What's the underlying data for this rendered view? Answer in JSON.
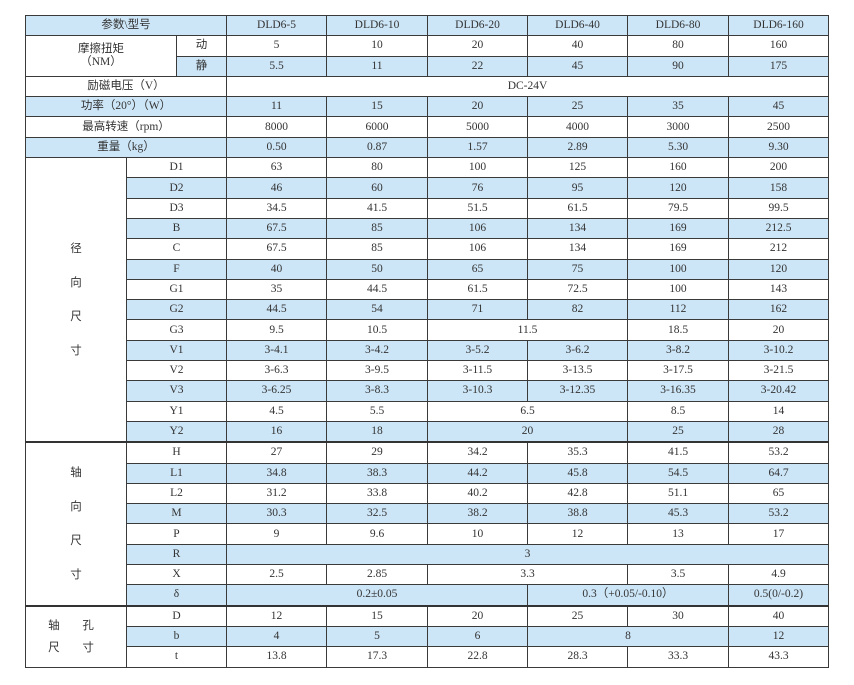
{
  "header": {
    "param_label": "参数\\型号",
    "models": [
      "DLD6-5",
      "DLD6-10",
      "DLD6-20",
      "DLD6-40",
      "DLD6-80",
      "DLD6-160"
    ]
  },
  "friction": {
    "label": "摩擦扭矩\n（NM）",
    "rows": [
      {
        "sub": "动",
        "values": [
          {
            "v": "5"
          },
          {
            "v": "10"
          },
          {
            "v": "20"
          },
          {
            "v": "40"
          },
          {
            "v": "80"
          },
          {
            "v": "160"
          }
        ]
      },
      {
        "sub": "静",
        "values": [
          {
            "v": "5.5"
          },
          {
            "v": "11"
          },
          {
            "v": "22"
          },
          {
            "v": "45"
          },
          {
            "v": "90"
          },
          {
            "v": "175"
          }
        ]
      }
    ]
  },
  "simple_rows": [
    {
      "label": "励磁电压（V）",
      "values": [
        {
          "v": "DC-24V",
          "span": 6
        }
      ]
    },
    {
      "label": "功率（20°）（W）",
      "values": [
        {
          "v": "11"
        },
        {
          "v": "15"
        },
        {
          "v": "20"
        },
        {
          "v": "25"
        },
        {
          "v": "35"
        },
        {
          "v": "45"
        }
      ]
    },
    {
      "label": "最高转速（rpm）",
      "values": [
        {
          "v": "8000"
        },
        {
          "v": "6000"
        },
        {
          "v": "5000"
        },
        {
          "v": "4000"
        },
        {
          "v": "3000"
        },
        {
          "v": "2500"
        }
      ]
    },
    {
      "label": "重量（kg）",
      "values": [
        {
          "v": "0.50"
        },
        {
          "v": "0.87"
        },
        {
          "v": "1.57"
        },
        {
          "v": "2.89"
        },
        {
          "v": "5.30"
        },
        {
          "v": "9.30"
        }
      ]
    }
  ],
  "groups": [
    {
      "label": "径\n向\n尺\n寸",
      "rows": [
        {
          "label": "D1",
          "values": [
            {
              "v": "63"
            },
            {
              "v": "80"
            },
            {
              "v": "100"
            },
            {
              "v": "125"
            },
            {
              "v": "160"
            },
            {
              "v": "200"
            }
          ]
        },
        {
          "label": "D2",
          "values": [
            {
              "v": "46"
            },
            {
              "v": "60"
            },
            {
              "v": "76"
            },
            {
              "v": "95"
            },
            {
              "v": "120"
            },
            {
              "v": "158"
            }
          ]
        },
        {
          "label": "D3",
          "values": [
            {
              "v": "34.5"
            },
            {
              "v": "41.5"
            },
            {
              "v": "51.5"
            },
            {
              "v": "61.5"
            },
            {
              "v": "79.5"
            },
            {
              "v": "99.5"
            }
          ]
        },
        {
          "label": "B",
          "values": [
            {
              "v": "67.5"
            },
            {
              "v": "85"
            },
            {
              "v": "106"
            },
            {
              "v": "134"
            },
            {
              "v": "169"
            },
            {
              "v": "212.5"
            }
          ]
        },
        {
          "label": "C",
          "values": [
            {
              "v": "67.5"
            },
            {
              "v": "85"
            },
            {
              "v": "106"
            },
            {
              "v": "134"
            },
            {
              "v": "169"
            },
            {
              "v": "212"
            }
          ]
        },
        {
          "label": "F",
          "values": [
            {
              "v": "40"
            },
            {
              "v": "50"
            },
            {
              "v": "65"
            },
            {
              "v": "75"
            },
            {
              "v": "100"
            },
            {
              "v": "120"
            }
          ]
        },
        {
          "label": "G1",
          "values": [
            {
              "v": "35"
            },
            {
              "v": "44.5"
            },
            {
              "v": "61.5"
            },
            {
              "v": "72.5"
            },
            {
              "v": "100"
            },
            {
              "v": "143"
            }
          ]
        },
        {
          "label": "G2",
          "values": [
            {
              "v": "44.5"
            },
            {
              "v": "54"
            },
            {
              "v": "71"
            },
            {
              "v": "82"
            },
            {
              "v": "112"
            },
            {
              "v": "162"
            }
          ]
        },
        {
          "label": "G3",
          "values": [
            {
              "v": "9.5"
            },
            {
              "v": "10.5"
            },
            {
              "v": "11.5",
              "span": 2
            },
            {
              "v": "18.5"
            },
            {
              "v": "20"
            }
          ]
        },
        {
          "label": "V1",
          "values": [
            {
              "v": "3-4.1"
            },
            {
              "v": "3-4.2"
            },
            {
              "v": "3-5.2"
            },
            {
              "v": "3-6.2"
            },
            {
              "v": "3-8.2"
            },
            {
              "v": "3-10.2"
            }
          ]
        },
        {
          "label": "V2",
          "values": [
            {
              "v": "3-6.3"
            },
            {
              "v": "3-9.5"
            },
            {
              "v": "3-11.5"
            },
            {
              "v": "3-13.5"
            },
            {
              "v": "3-17.5"
            },
            {
              "v": "3-21.5"
            }
          ]
        },
        {
          "label": "V3",
          "values": [
            {
              "v": "3-6.25"
            },
            {
              "v": "3-8.3"
            },
            {
              "v": "3-10.3"
            },
            {
              "v": "3-12.35"
            },
            {
              "v": "3-16.35"
            },
            {
              "v": "3-20.42"
            }
          ]
        },
        {
          "label": "Y1",
          "values": [
            {
              "v": "4.5"
            },
            {
              "v": "5.5"
            },
            {
              "v": "6.5",
              "span": 2
            },
            {
              "v": "8.5"
            },
            {
              "v": "14"
            }
          ]
        },
        {
          "label": "Y2",
          "values": [
            {
              "v": "16"
            },
            {
              "v": "18"
            },
            {
              "v": "20",
              "span": 2
            },
            {
              "v": "25"
            },
            {
              "v": "28"
            }
          ]
        }
      ]
    },
    {
      "label": "轴\n向\n尺\n寸",
      "rows": [
        {
          "label": "H",
          "values": [
            {
              "v": "27"
            },
            {
              "v": "29"
            },
            {
              "v": "34.2"
            },
            {
              "v": "35.3"
            },
            {
              "v": "41.5"
            },
            {
              "v": "53.2"
            }
          ]
        },
        {
          "label": "L1",
          "values": [
            {
              "v": "34.8"
            },
            {
              "v": "38.3"
            },
            {
              "v": "44.2"
            },
            {
              "v": "45.8"
            },
            {
              "v": "54.5"
            },
            {
              "v": "64.7"
            }
          ]
        },
        {
          "label": "L2",
          "values": [
            {
              "v": "31.2"
            },
            {
              "v": "33.8"
            },
            {
              "v": "40.2"
            },
            {
              "v": "42.8"
            },
            {
              "v": "51.1"
            },
            {
              "v": "65"
            }
          ]
        },
        {
          "label": "M",
          "values": [
            {
              "v": "30.3"
            },
            {
              "v": "32.5"
            },
            {
              "v": "38.2"
            },
            {
              "v": "38.8"
            },
            {
              "v": "45.3"
            },
            {
              "v": "53.2"
            }
          ]
        },
        {
          "label": "P",
          "values": [
            {
              "v": "9"
            },
            {
              "v": "9.6"
            },
            {
              "v": "10"
            },
            {
              "v": "12"
            },
            {
              "v": "13"
            },
            {
              "v": "17"
            }
          ]
        },
        {
          "label": "R",
          "values": [
            {
              "v": "3",
              "span": 6
            }
          ]
        },
        {
          "label": "X",
          "values": [
            {
              "v": "2.5"
            },
            {
              "v": "2.85"
            },
            {
              "v": "3.3",
              "span": 2
            },
            {
              "v": "3.5"
            },
            {
              "v": "4.9"
            }
          ]
        },
        {
          "label": "δ",
          "values": [
            {
              "v": "0.2±0.05",
              "span": 3
            },
            {
              "v": "0.3（+0.05/-0.10）",
              "span": 2
            },
            {
              "v": "0.5(0/-0.2)"
            }
          ]
        }
      ]
    },
    {
      "label": "轴 孔\n尺 寸",
      "rows": [
        {
          "label": "D",
          "values": [
            {
              "v": "12"
            },
            {
              "v": "15"
            },
            {
              "v": "20"
            },
            {
              "v": "25"
            },
            {
              "v": "30"
            },
            {
              "v": "40"
            }
          ]
        },
        {
          "label": "b",
          "values": [
            {
              "v": "4"
            },
            {
              "v": "5"
            },
            {
              "v": "6"
            },
            {
              "v": "8",
              "span": 2
            },
            {
              "v": "12"
            }
          ]
        },
        {
          "label": "t",
          "values": [
            {
              "v": "13.8"
            },
            {
              "v": "17.3"
            },
            {
              "v": "22.8"
            },
            {
              "v": "28.3"
            },
            {
              "v": "33.3"
            },
            {
              "v": "43.3"
            }
          ]
        }
      ]
    }
  ],
  "colors": {
    "shade": "#cde6f7",
    "border": "#3a3a3a"
  }
}
